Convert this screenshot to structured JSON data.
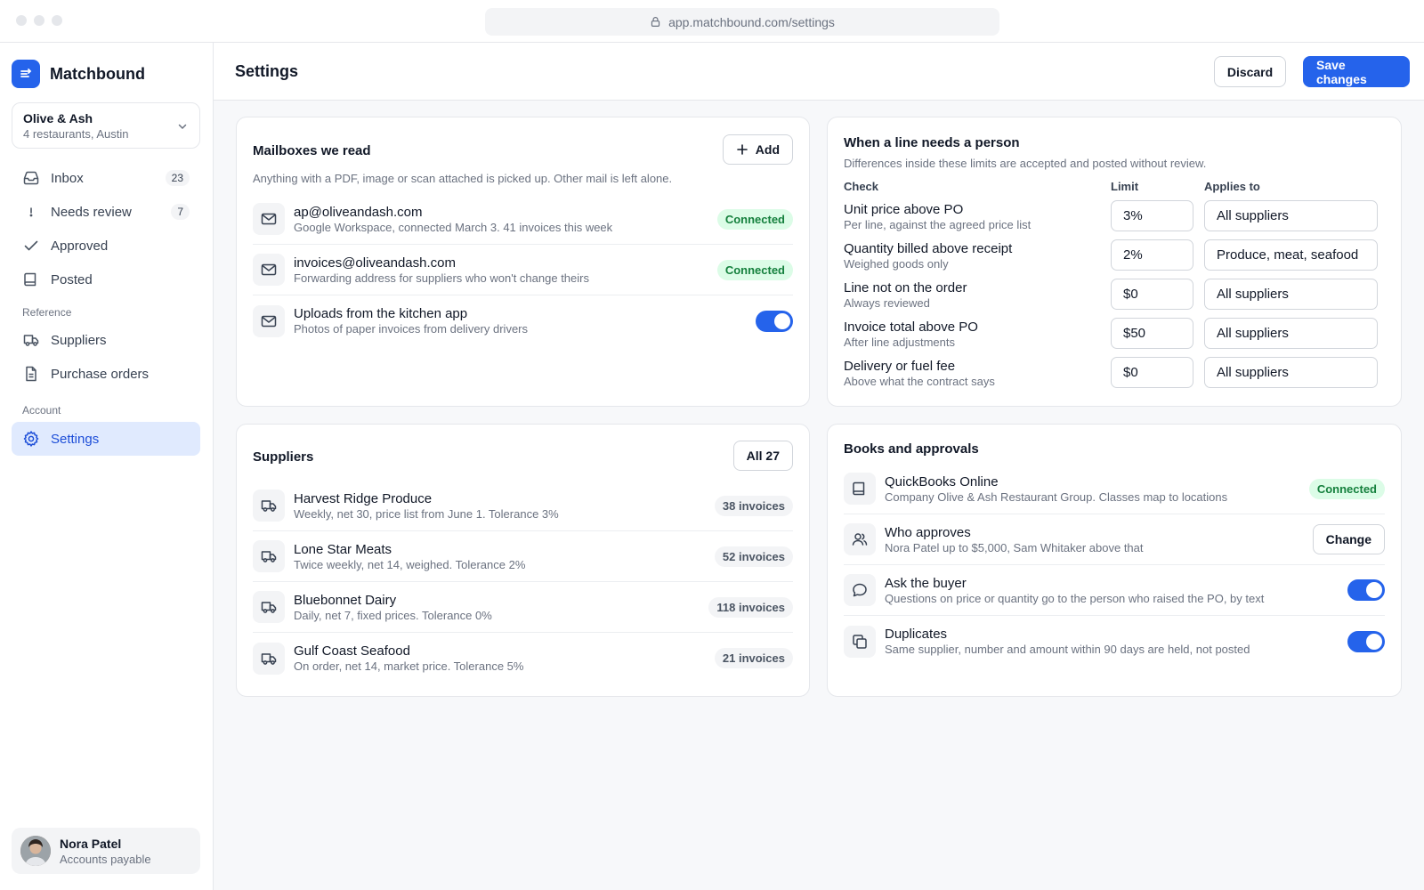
{
  "browser": {
    "url": "app.matchbound.com/settings"
  },
  "sidebar": {
    "brand": "Matchbound",
    "org": {
      "name": "Olive & Ash",
      "sub": "4 restaurants, Austin"
    },
    "items": [
      {
        "label": "Inbox",
        "badge": "23"
      },
      {
        "label": "Needs review",
        "badge": "7"
      },
      {
        "label": "Approved"
      },
      {
        "label": "Posted"
      }
    ],
    "reference_label": "Reference",
    "reference_items": [
      {
        "label": "Suppliers"
      },
      {
        "label": "Purchase orders"
      }
    ],
    "account_label": "Account",
    "account_items": [
      {
        "label": "Settings"
      }
    ],
    "user": {
      "name": "Nora Patel",
      "role": "Accounts payable"
    }
  },
  "header": {
    "title": "Settings",
    "discard": "Discard",
    "save": "Save changes"
  },
  "mailboxes": {
    "title": "Mailboxes we read",
    "add": "Add",
    "description": "Anything with a PDF, image or scan attached is picked up. Other mail is left alone.",
    "items": [
      {
        "title": "ap@oliveandash.com",
        "desc": "Google Workspace, connected March 3. 41 invoices this week",
        "status": "Connected"
      },
      {
        "title": "invoices@oliveandash.com",
        "desc": "Forwarding address for suppliers who won't change theirs",
        "status": "Connected"
      },
      {
        "title": "Uploads from the kitchen app",
        "desc": "Photos of paper invoices from delivery drivers",
        "toggle": true
      }
    ]
  },
  "rules": {
    "title": "When a line needs a person",
    "description": "Differences inside these limits are accepted and posted without review.",
    "headers": {
      "check": "Check",
      "limit": "Limit",
      "applies": "Applies to"
    },
    "items": [
      {
        "title": "Unit price above PO",
        "desc": "Per line, against the agreed price list",
        "limit": "3%",
        "applies": "All suppliers"
      },
      {
        "title": "Quantity billed above receipt",
        "desc": "Weighed goods only",
        "limit": "2%",
        "applies": "Produce, meat, seafood"
      },
      {
        "title": "Line not on the order",
        "desc": "Always reviewed",
        "limit": "$0",
        "applies": "All suppliers"
      },
      {
        "title": "Invoice total above PO",
        "desc": "After line adjustments",
        "limit": "$50",
        "applies": "All suppliers"
      },
      {
        "title": "Delivery or fuel fee",
        "desc": "Above what the contract says",
        "limit": "$0",
        "applies": "All suppliers"
      }
    ]
  },
  "suppliers": {
    "title": "Suppliers",
    "all": "All 27",
    "items": [
      {
        "name": "Harvest Ridge Produce",
        "desc": "Weekly, net 30, price list from June 1. Tolerance 3%",
        "count": "38 invoices"
      },
      {
        "name": "Lone Star Meats",
        "desc": "Twice weekly, net 14, weighed. Tolerance 2%",
        "count": "52 invoices"
      },
      {
        "name": "Bluebonnet Dairy",
        "desc": "Daily, net 7, fixed prices. Tolerance 0%",
        "count": "118 invoices"
      },
      {
        "name": "Gulf Coast Seafood",
        "desc": "On order, net 14, market price. Tolerance 5%",
        "count": "21 invoices"
      }
    ]
  },
  "books": {
    "title": "Books and approvals",
    "items": [
      {
        "title": "QuickBooks Online",
        "desc": "Company Olive & Ash Restaurant Group. Classes map to locations",
        "status": "Connected"
      },
      {
        "title": "Who approves",
        "desc": "Nora Patel up to $5,000, Sam Whitaker above that",
        "action": "Change"
      },
      {
        "title": "Ask the buyer",
        "desc": "Questions on price or quantity go to the person who raised the PO, by text",
        "toggle": true
      },
      {
        "title": "Duplicates",
        "desc": "Same supplier, number and amount within 90 days are held, not posted",
        "toggle": true
      }
    ]
  },
  "colors": {
    "accent": "#2563eb",
    "connected_bg": "#dcfce7",
    "connected_text": "#15803d",
    "active_nav_bg": "#e0eafe"
  }
}
